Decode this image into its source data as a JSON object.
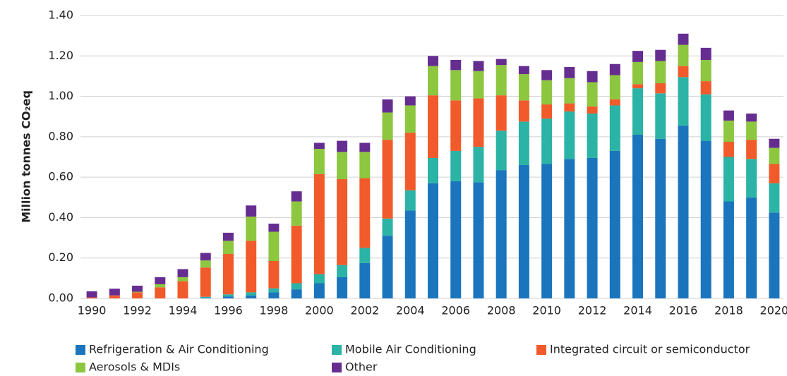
{
  "chart_data": {
    "type": "stacked_bar",
    "y_label": "Million tonnes CO₂eq",
    "categories": [
      "1990",
      null,
      "1992",
      null,
      "1994",
      null,
      "1996",
      null,
      "1998",
      null,
      "2000",
      null,
      "2002",
      null,
      "2004",
      null,
      "2006",
      null,
      "2008",
      null,
      "2010",
      null,
      "2012",
      null,
      "2014",
      null,
      "2016",
      null,
      "2018",
      null,
      "2020"
    ],
    "series": [
      {
        "name": "Refrigeration & Air Conditioning",
        "color": "#1b75bc",
        "values": [
          0,
          0,
          0,
          0,
          0,
          0.003,
          0.01,
          0.015,
          0.03,
          0.045,
          0.075,
          0.105,
          0.175,
          0.31,
          0.435,
          0.57,
          0.58,
          0.575,
          0.635,
          0.66,
          0.665,
          0.69,
          0.695,
          0.73,
          0.81,
          0.79,
          0.855,
          0.78,
          0.48,
          0.5,
          0.425
        ]
      },
      {
        "name": "Mobile Air Conditioning",
        "color": "#2bb3a6",
        "values": [
          0,
          0,
          0,
          0,
          0,
          0.005,
          0.01,
          0.015,
          0.02,
          0.03,
          0.045,
          0.06,
          0.075,
          0.085,
          0.1,
          0.125,
          0.15,
          0.175,
          0.195,
          0.215,
          0.225,
          0.235,
          0.22,
          0.225,
          0.23,
          0.225,
          0.24,
          0.23,
          0.22,
          0.19,
          0.145
        ]
      },
      {
        "name": "Integrated circuit or semiconductor",
        "color": "#f15a2b",
        "values": [
          0.005,
          0.015,
          0.03,
          0.055,
          0.085,
          0.145,
          0.2,
          0.255,
          0.135,
          0.285,
          0.495,
          0.425,
          0.345,
          0.39,
          0.285,
          0.31,
          0.25,
          0.24,
          0.175,
          0.105,
          0.07,
          0.04,
          0.035,
          0.03,
          0.02,
          0.05,
          0.055,
          0.065,
          0.075,
          0.095,
          0.095
        ]
      },
      {
        "name": "Aerosols & MDIs",
        "color": "#8dc63f",
        "values": [
          0,
          0,
          0.003,
          0.015,
          0.02,
          0.035,
          0.065,
          0.12,
          0.145,
          0.12,
          0.125,
          0.135,
          0.13,
          0.135,
          0.135,
          0.145,
          0.15,
          0.135,
          0.15,
          0.13,
          0.12,
          0.125,
          0.12,
          0.12,
          0.11,
          0.11,
          0.105,
          0.105,
          0.105,
          0.09,
          0.08
        ]
      },
      {
        "name": "Other",
        "color": "#662d91",
        "values": [
          0.03,
          0.033,
          0.03,
          0.035,
          0.04,
          0.037,
          0.04,
          0.055,
          0.04,
          0.05,
          0.03,
          0.055,
          0.045,
          0.065,
          0.045,
          0.05,
          0.05,
          0.05,
          0.03,
          0.04,
          0.05,
          0.055,
          0.055,
          0.055,
          0.055,
          0.055,
          0.055,
          0.06,
          0.05,
          0.04,
          0.045
        ]
      }
    ],
    "ylim": [
      0,
      1.4
    ],
    "yticks": [
      {
        "value": 0,
        "label": "0.00"
      },
      {
        "value": 0.2,
        "label": "0.20"
      },
      {
        "value": 0.4,
        "label": "0.40"
      },
      {
        "value": 0.6,
        "label": "0.60"
      },
      {
        "value": 0.8,
        "label": "0.80"
      },
      {
        "value": 1,
        "label": "1.00"
      },
      {
        "value": 1.2,
        "label": "1.20"
      },
      {
        "value": 1.4,
        "label": "1.40"
      }
    ],
    "grid": true,
    "legend": "bottom"
  }
}
